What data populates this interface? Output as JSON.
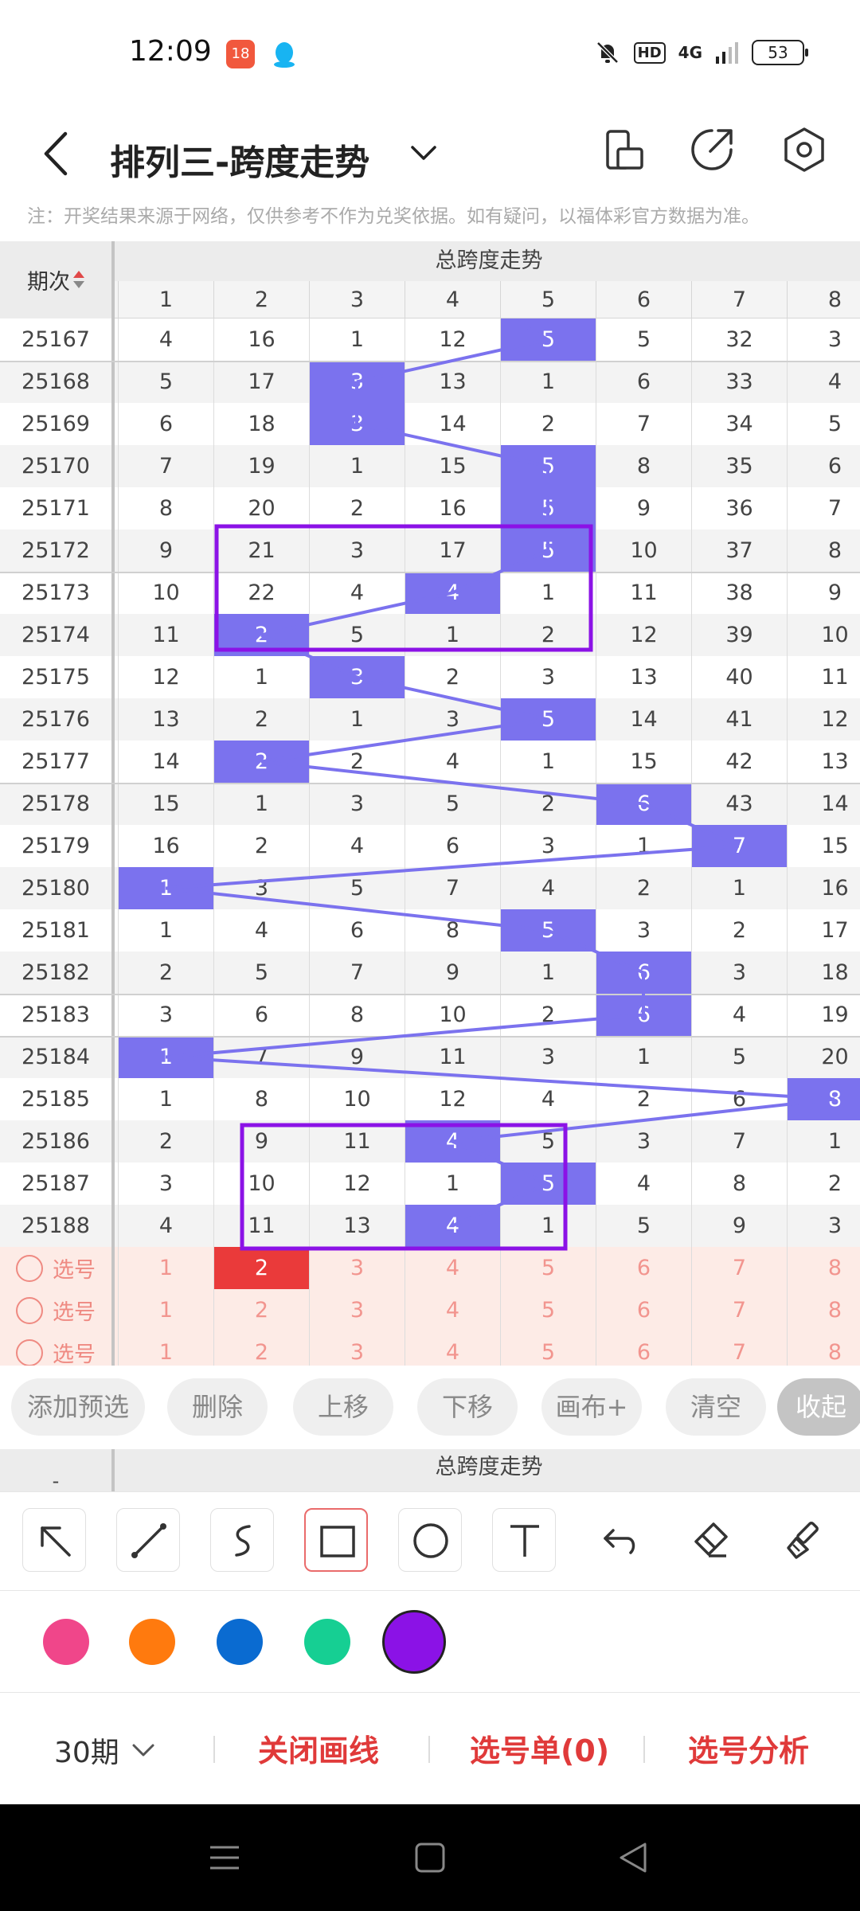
{
  "status": {
    "time": "12:09",
    "app1_label": "18",
    "hd": "HD",
    "signal": "4G",
    "battery": "53"
  },
  "header": {
    "title": "排列三-跨度走势",
    "note": "注：开奖结果来源于网络，仅供参考不作为兑奖依据。如有疑问，以福体彩官方数据为准。"
  },
  "table": {
    "period_header": "期次",
    "group_title": "总跨度走势",
    "columns": [
      "1",
      "2",
      "3",
      "4",
      "5",
      "6",
      "7",
      "8"
    ],
    "rows": [
      {
        "period": "25167",
        "cells": [
          "4",
          "16",
          "1",
          "12",
          "5",
          "5",
          "32",
          "3"
        ],
        "hit": 4
      },
      {
        "period": "25168",
        "cells": [
          "5",
          "17",
          "3",
          "13",
          "1",
          "6",
          "33",
          "4"
        ],
        "hit": 2
      },
      {
        "period": "25169",
        "cells": [
          "6",
          "18",
          "3",
          "14",
          "2",
          "7",
          "34",
          "5"
        ],
        "hit": 2
      },
      {
        "period": "25170",
        "cells": [
          "7",
          "19",
          "1",
          "15",
          "5",
          "8",
          "35",
          "6"
        ],
        "hit": 4
      },
      {
        "period": "25171",
        "cells": [
          "8",
          "20",
          "2",
          "16",
          "5",
          "9",
          "36",
          "7"
        ],
        "hit": 4
      },
      {
        "period": "25172",
        "cells": [
          "9",
          "21",
          "3",
          "17",
          "5",
          "10",
          "37",
          "8"
        ],
        "hit": 4
      },
      {
        "period": "25173",
        "cells": [
          "10",
          "22",
          "4",
          "4",
          "1",
          "11",
          "38",
          "9"
        ],
        "hit": 3
      },
      {
        "period": "25174",
        "cells": [
          "11",
          "2",
          "5",
          "1",
          "2",
          "12",
          "39",
          "10"
        ],
        "hit": 1
      },
      {
        "period": "25175",
        "cells": [
          "12",
          "1",
          "3",
          "2",
          "3",
          "13",
          "40",
          "11"
        ],
        "hit": 2
      },
      {
        "period": "25176",
        "cells": [
          "13",
          "2",
          "1",
          "3",
          "5",
          "14",
          "41",
          "12"
        ],
        "hit": 4
      },
      {
        "period": "25177",
        "cells": [
          "14",
          "2",
          "2",
          "4",
          "1",
          "15",
          "42",
          "13"
        ],
        "hit": 1
      },
      {
        "period": "25178",
        "cells": [
          "15",
          "1",
          "3",
          "5",
          "2",
          "6",
          "43",
          "14"
        ],
        "hit": 5
      },
      {
        "period": "25179",
        "cells": [
          "16",
          "2",
          "4",
          "6",
          "3",
          "1",
          "7",
          "15"
        ],
        "hit": 6
      },
      {
        "period": "25180",
        "cells": [
          "1",
          "3",
          "5",
          "7",
          "4",
          "2",
          "1",
          "16"
        ],
        "hit": 0
      },
      {
        "period": "25181",
        "cells": [
          "1",
          "4",
          "6",
          "8",
          "5",
          "3",
          "2",
          "17"
        ],
        "hit": 4
      },
      {
        "period": "25182",
        "cells": [
          "2",
          "5",
          "7",
          "9",
          "1",
          "6",
          "3",
          "18"
        ],
        "hit": 5
      },
      {
        "period": "25183",
        "cells": [
          "3",
          "6",
          "8",
          "10",
          "2",
          "6",
          "4",
          "19"
        ],
        "hit": 5
      },
      {
        "period": "25184",
        "cells": [
          "1",
          "7",
          "9",
          "11",
          "3",
          "1",
          "5",
          "20"
        ],
        "hit": 0
      },
      {
        "period": "25185",
        "cells": [
          "1",
          "8",
          "10",
          "12",
          "4",
          "2",
          "6",
          "8"
        ],
        "hit": 7
      },
      {
        "period": "25186",
        "cells": [
          "2",
          "9",
          "11",
          "4",
          "5",
          "3",
          "7",
          "1"
        ],
        "hit": 3
      },
      {
        "period": "25187",
        "cells": [
          "3",
          "10",
          "12",
          "1",
          "5",
          "4",
          "8",
          "2"
        ],
        "hit": 4
      },
      {
        "period": "25188",
        "cells": [
          "4",
          "11",
          "13",
          "4",
          "1",
          "5",
          "9",
          "3"
        ],
        "hit": 3
      }
    ],
    "select_label": "选号",
    "select_rows": [
      {
        "cells": [
          "1",
          "2",
          "3",
          "4",
          "5",
          "6",
          "7",
          "8"
        ],
        "picked": 1
      },
      {
        "cells": [
          "1",
          "2",
          "3",
          "4",
          "5",
          "6",
          "7",
          "8"
        ],
        "picked": -1
      },
      {
        "cells": [
          "1",
          "2",
          "3",
          "4",
          "5",
          "6",
          "7",
          "8"
        ],
        "picked": -1
      }
    ]
  },
  "actions": [
    "添加预选",
    "删除",
    "上移",
    "下移",
    "画布+",
    "清空",
    "收起"
  ],
  "second_table": {
    "left": "-",
    "title": "总跨度走势"
  },
  "tools": [
    "select-arrow",
    "line",
    "freehand",
    "rectangle",
    "circle",
    "text",
    "undo",
    "eraser",
    "clear-brush"
  ],
  "active_tool": "rectangle",
  "palette": [
    "#f0468a",
    "#ff7a0e",
    "#0a6bd1",
    "#16cf93",
    "#8b12e6"
  ],
  "selected_color": "#8b12e6",
  "accent_hit": "#7b72ee",
  "bottom": {
    "period": "30期",
    "close_draw": "关闭画线",
    "selection_list": "选号单(0)",
    "analysis": "选号分析"
  }
}
